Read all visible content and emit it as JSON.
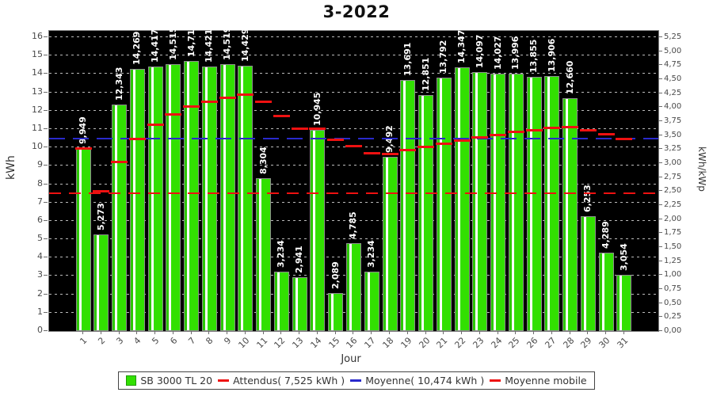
{
  "title": "3-2022",
  "axes": {
    "left_label": "kWh",
    "right_label": "kWh/kWp",
    "x_label": "Jour"
  },
  "legend": {
    "series_label": "SB 3000 TL 20",
    "attendus_label": "Attendus( 7,525 kWh )",
    "moyenne_label": "Moyenne( 10,474 kWh )",
    "moyenne_mobile_label": "Moyenne mobile"
  },
  "colors": {
    "bar_green": "#32e001",
    "bar_border": "#8c8c8c",
    "attendus_red": "#ee1111",
    "moyenne_blue": "#2929cc",
    "moyenne_mobile_red": "#ee1111",
    "plot_background": "#000000"
  },
  "chart_data": {
    "type": "bar",
    "title": "3-2022",
    "xlabel": "Jour",
    "ylabel_left": "kWh",
    "ylabel_right": "kWh/kWp",
    "ylim_left": [
      0,
      16
    ],
    "ytick_step_left": 1,
    "ylim_right": [
      0,
      5.25
    ],
    "ytick_step_right": 0.25,
    "grid": "horizontal-dashed",
    "legend_position": "bottom",
    "categories": [
      1,
      2,
      3,
      4,
      5,
      6,
      7,
      8,
      9,
      10,
      11,
      12,
      13,
      14,
      15,
      16,
      17,
      18,
      19,
      20,
      21,
      22,
      23,
      24,
      25,
      26,
      27,
      28,
      29,
      30,
      31
    ],
    "values_kwh": [
      9.949,
      5.273,
      12.343,
      14.269,
      14.417,
      14.515,
      14.714,
      14.421,
      14.519,
      14.429,
      8.304,
      3.234,
      2.941,
      10.945,
      2.089,
      4.785,
      3.234,
      9.492,
      13.691,
      12.851,
      13.792,
      14.347,
      14.097,
      14.027,
      13.996,
      13.855,
      13.906,
      12.66,
      6.253,
      4.289,
      3.054
    ],
    "bar_labels": [
      "9,949",
      "5,273",
      "12,343",
      "14,269",
      "14,417",
      "14,515",
      "14,714",
      "14,421",
      "14,519",
      "14,429",
      "8,304",
      "3,234",
      "2,941",
      "10,945",
      "2,089",
      "4,785",
      "3,234",
      "9,492",
      "13,691",
      "12,851",
      "13,792",
      "14,347",
      "14,097",
      "14,027",
      "13,996",
      "13,855",
      "13,906",
      "12,660",
      "6,253",
      "4,289",
      "3,054"
    ],
    "attendus_kwh": 7.525,
    "moyenne_kwh": 10.474,
    "moyenne_mobile_kwh": [
      9.949,
      7.611,
      9.188,
      10.459,
      11.25,
      11.794,
      12.211,
      12.488,
      12.713,
      12.885,
      12.468,
      11.699,
      11.025,
      11.02,
      10.424,
      10.072,
      9.669,
      9.66,
      9.872,
      10.021,
      10.2,
      10.389,
      10.55,
      10.695,
      10.827,
      10.943,
      11.053,
      11.111,
      10.943,
      10.721,
      10.474
    ],
    "series": [
      {
        "name": "SB 3000 TL 20",
        "type": "bar",
        "color": "#32e001"
      },
      {
        "name": "Attendus( 7,525 kWh )",
        "type": "hline",
        "color": "#ee1111"
      },
      {
        "name": "Moyenne( 10,474 kWh )",
        "type": "hline",
        "color": "#2929cc"
      },
      {
        "name": "Moyenne mobile",
        "type": "segments",
        "color": "#ee1111"
      }
    ]
  }
}
